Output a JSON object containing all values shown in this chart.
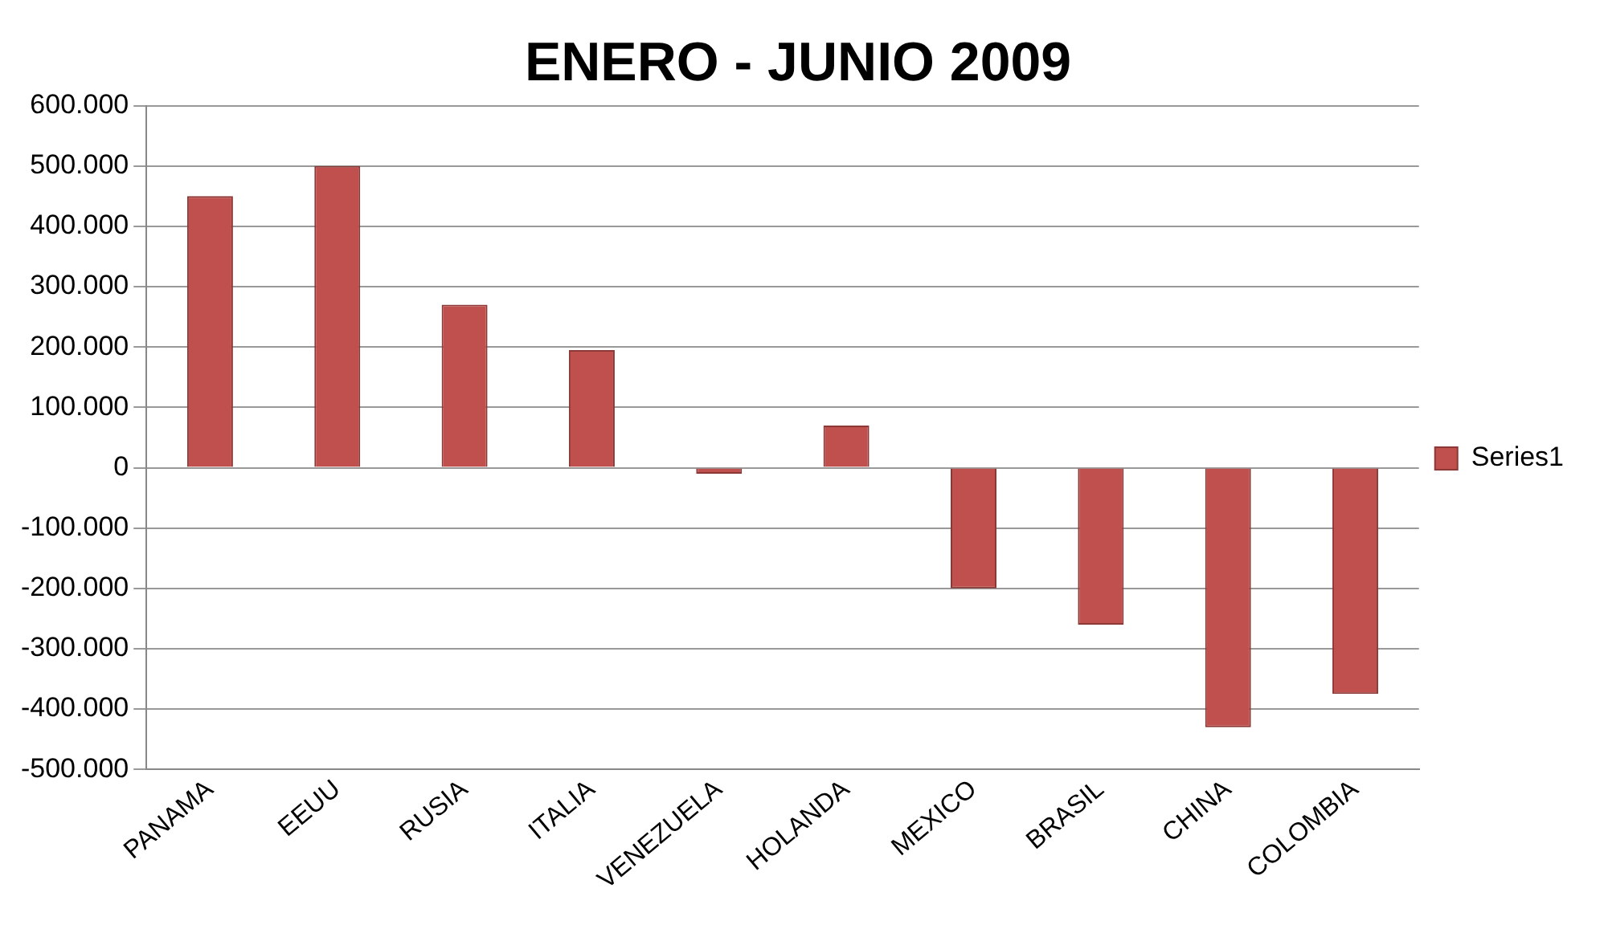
{
  "chart_data": {
    "type": "bar",
    "title": "ENERO - JUNIO 2009",
    "categories": [
      "PANAMA",
      "EEUU",
      "RUSIA",
      "ITALIA",
      "VENEZUELA",
      "HOLANDA",
      "MEXICO",
      "BRASIL",
      "CHINA",
      "COLOMBIA"
    ],
    "series": [
      {
        "name": "Series1",
        "color": "#c0504d",
        "values": [
          450000,
          500000,
          270000,
          195000,
          -10000,
          70000,
          -200000,
          -260000,
          -430000,
          -375000
        ]
      }
    ],
    "ylim": [
      -500000,
      600000
    ],
    "yticks": [
      {
        "value": -500000,
        "label": "-500.000"
      },
      {
        "value": -400000,
        "label": "-400.000"
      },
      {
        "value": -300000,
        "label": "-300.000"
      },
      {
        "value": -200000,
        "label": "-200.000"
      },
      {
        "value": -100000,
        "label": "-100.000"
      },
      0,
      {
        "value": 100000,
        "label": "100.000"
      },
      {
        "value": 200000,
        "label": "200.000"
      },
      {
        "value": 300000,
        "label": "300.000"
      },
      {
        "value": 400000,
        "label": "400.000"
      },
      {
        "value": 500000,
        "label": "500.000"
      },
      {
        "value": 600000,
        "label": "600.000"
      }
    ],
    "grid": "y",
    "legend": "right"
  }
}
